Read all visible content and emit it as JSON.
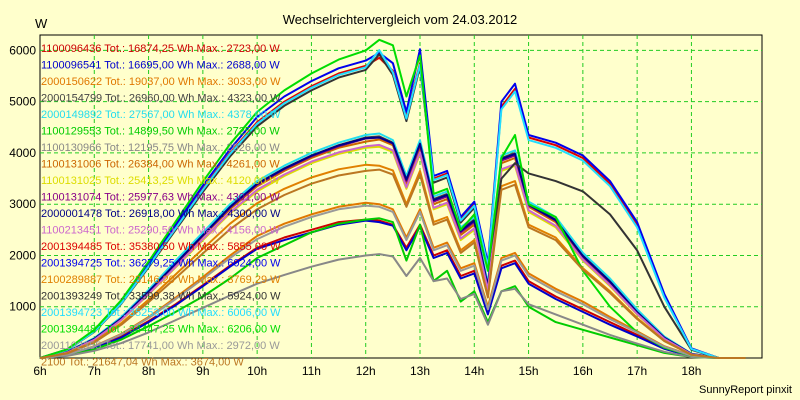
{
  "chart_data": {
    "type": "line",
    "title": "Wechselrichtervergleich vom 24.03.2012",
    "ylabel": "W",
    "xlabel": "",
    "footer": "SunnyReport pinxit",
    "x_unit": "hour",
    "xlim": [
      6,
      19.3
    ],
    "ylim": [
      0,
      6300
    ],
    "x_ticks": [
      "6h",
      "7h",
      "8h",
      "9h",
      "10h",
      "11h",
      "12h",
      "13h",
      "14h",
      "15h",
      "16h",
      "17h",
      "18h"
    ],
    "y_ticks": [
      "1000",
      "2000",
      "3000",
      "4000",
      "5000",
      "6000"
    ],
    "grid": true,
    "grid_color": "#22cc22",
    "legend_position": "top-left",
    "x": [
      6.0,
      6.5,
      7.0,
      7.5,
      8.0,
      8.5,
      9.0,
      9.5,
      10.0,
      10.5,
      11.0,
      11.5,
      12.0,
      12.25,
      12.5,
      12.75,
      13.0,
      13.25,
      13.5,
      13.75,
      14.0,
      14.25,
      14.5,
      14.75,
      15.0,
      15.5,
      16.0,
      16.5,
      17.0,
      17.5,
      18.0,
      18.5,
      19.0
    ],
    "series": [
      {
        "name": "1100096436",
        "legend": "1100096436 Tot.: 16874,25 Wh Max.: 2723,00 W",
        "color": "#cc0000",
        "values": [
          0,
          60,
          200,
          420,
          720,
          1050,
          1420,
          1800,
          2150,
          2350,
          2500,
          2650,
          2700,
          2680,
          2600,
          2150,
          2600,
          2000,
          2100,
          1600,
          1700,
          900,
          1800,
          1900,
          1500,
          1200,
          950,
          700,
          450,
          200,
          40,
          0,
          0
        ]
      },
      {
        "name": "1100096541",
        "legend": "1100096541 Tot.: 16695,00 Wh Max.: 2688,00 W",
        "color": "#0000cc",
        "values": [
          0,
          55,
          190,
          400,
          700,
          1030,
          1400,
          1780,
          2130,
          2300,
          2450,
          2600,
          2680,
          2650,
          2580,
          2100,
          2560,
          1950,
          2050,
          1550,
          1650,
          850,
          1750,
          1850,
          1450,
          1150,
          900,
          650,
          420,
          180,
          30,
          0,
          0
        ]
      },
      {
        "name": "2000150622",
        "legend": "2000150622 Tot.: 19037,00 Wh Max.: 3033,00 W",
        "color": "#e07800",
        "values": [
          0,
          70,
          230,
          470,
          800,
          1180,
          1580,
          2000,
          2380,
          2620,
          2800,
          2950,
          3030,
          3000,
          2900,
          2350,
          2900,
          2150,
          2250,
          1750,
          1850,
          1000,
          1950,
          2050,
          1650,
          1350,
          1100,
          800,
          520,
          230,
          50,
          0,
          0
        ]
      },
      {
        "name": "2000154799",
        "legend": "2000154799 Tot.: 26960,00 Wh Max.: 4323,00 W",
        "color": "#444444",
        "values": [
          0,
          120,
          380,
          780,
          1300,
          1850,
          2400,
          2950,
          3400,
          3700,
          3950,
          4150,
          4300,
          4323,
          4200,
          3500,
          4200,
          3100,
          3200,
          2500,
          2700,
          1400,
          3900,
          4000,
          3000,
          2700,
          2000,
          1500,
          900,
          400,
          80,
          0,
          0
        ]
      },
      {
        "name": "2000149892",
        "legend": "2000149892 Tot.: 27567,00 Wh Max.: 4378,00 W",
        "color": "#22ddee",
        "values": [
          0,
          125,
          390,
          800,
          1330,
          1900,
          2450,
          3000,
          3450,
          3750,
          4000,
          4200,
          4350,
          4378,
          4250,
          3550,
          4250,
          3150,
          3250,
          2550,
          2750,
          1450,
          3950,
          4050,
          3050,
          2750,
          2050,
          1550,
          950,
          420,
          85,
          0,
          0
        ]
      },
      {
        "name": "1100129553",
        "legend": "1100129553 Tot.: 14899,50 Wh Max.: 2725,00 W",
        "color": "#00cc00",
        "values": [
          0,
          50,
          170,
          360,
          620,
          900,
          1200,
          1550,
          1950,
          2200,
          2450,
          2620,
          2700,
          2725,
          2650,
          1900,
          2600,
          1500,
          1700,
          1100,
          1300,
          700,
          1300,
          1400,
          1000,
          700,
          550,
          400,
          250,
          100,
          20,
          0,
          0
        ]
      },
      {
        "name": "1100130966",
        "legend": "1100130966 Tot.: 12195,75 Wh Max.: 2026,00 W",
        "color": "#888888",
        "values": [
          0,
          40,
          140,
          290,
          500,
          740,
          980,
          1220,
          1450,
          1620,
          1780,
          1920,
          2000,
          2026,
          1980,
          1600,
          1950,
          1500,
          1550,
          1150,
          1250,
          650,
          1300,
          1350,
          1050,
          850,
          650,
          450,
          280,
          120,
          20,
          0,
          0
        ]
      },
      {
        "name": "1100131006",
        "legend": "1100131006 Tot.: 26384,00 Wh Max.: 4261,00 W",
        "color": "#cc6600",
        "values": [
          0,
          110,
          360,
          760,
          1280,
          1820,
          2380,
          2900,
          3350,
          3650,
          3900,
          4100,
          4220,
          4261,
          4150,
          3400,
          4100,
          3000,
          3100,
          2400,
          2600,
          1350,
          3800,
          3900,
          2950,
          2650,
          1950,
          1450,
          880,
          390,
          75,
          0,
          0
        ]
      },
      {
        "name": "1100131025",
        "legend": "1100131025 Tot.: 25413,25 Wh Max.: 4120,00 W",
        "color": "#dddd00",
        "values": [
          0,
          105,
          350,
          740,
          1240,
          1770,
          2300,
          2820,
          3250,
          3550,
          3800,
          3980,
          4100,
          4120,
          4020,
          3300,
          3980,
          2900,
          3000,
          2300,
          2500,
          1300,
          3650,
          3750,
          2850,
          2550,
          1900,
          1400,
          850,
          370,
          70,
          0,
          0
        ]
      },
      {
        "name": "1100131074",
        "legend": "1100131074 Tot.: 25977,63 Wh Max.: 4301,00 W",
        "color": "#880088",
        "values": [
          0,
          115,
          370,
          770,
          1290,
          1840,
          2390,
          2930,
          3380,
          3680,
          3930,
          4130,
          4280,
          4301,
          4180,
          3450,
          4150,
          3050,
          3150,
          2450,
          2650,
          1380,
          3850,
          3950,
          2980,
          2680,
          1980,
          1480,
          890,
          395,
          78,
          0,
          0
        ]
      },
      {
        "name": "2000001478",
        "legend": "2000001478 Tot.: 26918,00 Wh Max.: 4300,00 W",
        "color": "#000088",
        "values": [
          0,
          118,
          375,
          775,
          1295,
          1845,
          2395,
          2945,
          3395,
          3695,
          3945,
          4145,
          4290,
          4300,
          4190,
          3480,
          4180,
          3080,
          3180,
          2480,
          2680,
          1390,
          3880,
          3980,
          2990,
          2690,
          1990,
          1490,
          895,
          398,
          79,
          0,
          0
        ]
      },
      {
        "name": "1100213451",
        "legend": "1100213451 Tot.: 25290,50 Wh Max.: 4156,00 W",
        "color": "#cc66cc",
        "values": [
          0,
          108,
          355,
          745,
          1250,
          1780,
          2320,
          2840,
          3280,
          3580,
          3830,
          4010,
          4130,
          4156,
          4050,
          3330,
          4010,
          2930,
          3030,
          2330,
          2530,
          1320,
          3680,
          3780,
          2880,
          2580,
          1920,
          1420,
          860,
          375,
          72,
          0,
          0
        ]
      },
      {
        "name": "2001394485",
        "legend": "2001394485 Tot.: 35380,50 Wh Max.: 5855,00 W",
        "color": "#dd0000",
        "values": [
          0,
          160,
          520,
          1080,
          1800,
          2550,
          3300,
          4000,
          4600,
          5000,
          5300,
          5550,
          5700,
          5855,
          5600,
          4700,
          5750,
          3500,
          3600,
          2700,
          3000,
          1800,
          4900,
          5250,
          4300,
          4150,
          3900,
          3400,
          2600,
          1200,
          180,
          0,
          0
        ]
      },
      {
        "name": "2001394725",
        "legend": "2001394725 Tot.: 36279,25 Wh Max.: 6024,00 W",
        "color": "#0000ee",
        "values": [
          0,
          165,
          530,
          1100,
          1830,
          2600,
          3360,
          4070,
          4700,
          5100,
          5400,
          5650,
          5800,
          5950,
          5750,
          4800,
          6024,
          3550,
          3650,
          2750,
          3050,
          1850,
          5000,
          5350,
          4350,
          4200,
          3950,
          3450,
          2650,
          1250,
          190,
          0,
          0
        ]
      },
      {
        "name": "2100289887",
        "legend": "2100289887 Tot.: 23146,20 Wh Max.: 3769,29 W",
        "color": "#e08000",
        "values": [
          0,
          95,
          320,
          680,
          1140,
          1630,
          2130,
          2620,
          3020,
          3300,
          3520,
          3680,
          3769,
          3750,
          3660,
          3000,
          3650,
          2650,
          2750,
          2100,
          2300,
          1200,
          3350,
          3450,
          2600,
          2350,
          1750,
          1300,
          780,
          340,
          65,
          0,
          0
        ]
      },
      {
        "name": "2001393249",
        "legend": "2001393249 Tot.: 33599,38 Wh Max.: 5924,00 W",
        "color": "#333333",
        "values": [
          0,
          155,
          510,
          1060,
          1770,
          2500,
          3240,
          3930,
          4520,
          4920,
          5220,
          5470,
          5620,
          5924,
          5520,
          4620,
          5680,
          3420,
          3520,
          2640,
          2930,
          1760,
          3500,
          3800,
          3600,
          3450,
          3250,
          2800,
          2100,
          1000,
          160,
          0,
          0
        ]
      },
      {
        "name": "2001394723",
        "legend": "2001394723 Tot.: 35253,00 Wh Max.: 6006,00 W",
        "color": "#22ddff",
        "values": [
          0,
          158,
          515,
          1070,
          1790,
          2530,
          3280,
          3980,
          4570,
          4970,
          5270,
          5520,
          5670,
          6006,
          5570,
          4670,
          5720,
          3470,
          3570,
          2680,
          2970,
          1780,
          4850,
          5200,
          4250,
          4100,
          3850,
          3350,
          2550,
          1180,
          175,
          0,
          0
        ]
      },
      {
        "name": "2001394487",
        "legend": "2001394487 Tot.: 34447,25 Wh Max.: 6206,00 W",
        "color": "#00dd00",
        "values": [
          0,
          170,
          550,
          1130,
          1880,
          2660,
          3440,
          4170,
          4800,
          5220,
          5550,
          5820,
          6000,
          6206,
          6100,
          5100,
          5900,
          3200,
          3300,
          2500,
          2800,
          1700,
          3900,
          4350,
          3000,
          2750,
          1700,
          1000,
          500,
          200,
          40,
          0,
          0
        ]
      },
      {
        "name": "2001102355",
        "legend": "2001102355 Tot.: 17741,00 Wh Max.: 2972,00 W",
        "color": "#999999",
        "values": [
          0,
          68,
          225,
          460,
          780,
          1150,
          1540,
          1950,
          2320,
          2560,
          2750,
          2900,
          2972,
          2950,
          2850,
          2300,
          2850,
          2100,
          2200,
          1700,
          1800,
          950,
          1900,
          2000,
          1600,
          1300,
          1050,
          760,
          500,
          220,
          45,
          0,
          0
        ]
      },
      {
        "name": "2100",
        "legend": "2100 Tot.: 21647,04 Wh Max.: 3674,00 W",
        "color": "#bb7722",
        "values": [
          0,
          90,
          305,
          650,
          1090,
          1560,
          2040,
          2510,
          2900,
          3180,
          3400,
          3560,
          3650,
          3674,
          3580,
          2950,
          3580,
          2600,
          2700,
          2050,
          2250,
          1180,
          3280,
          3380,
          2550,
          2300,
          1720,
          1270,
          760,
          330,
          62,
          0,
          0
        ]
      }
    ]
  }
}
